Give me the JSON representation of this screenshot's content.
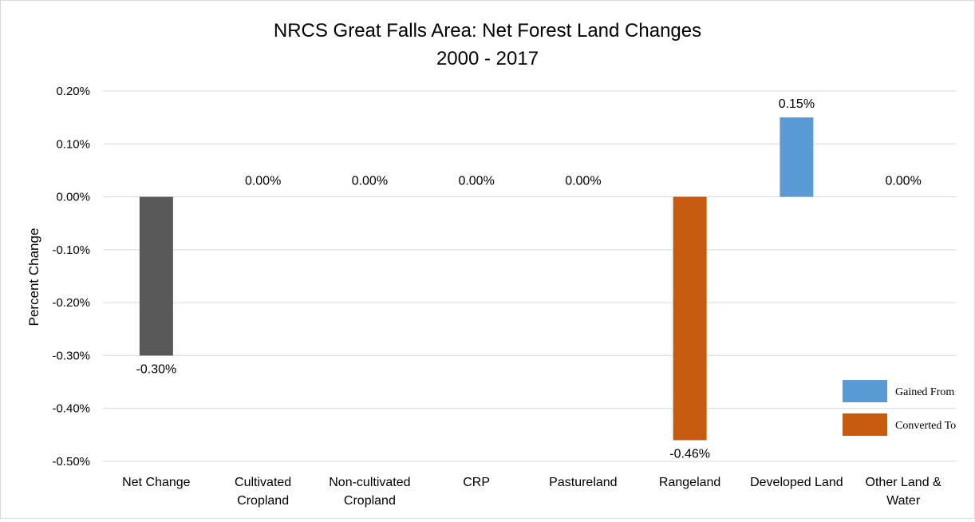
{
  "chart_data": {
    "type": "bar",
    "title": "NRCS Great Falls Area: Net Forest Land Changes",
    "subtitle": "2000 - 2017",
    "xlabel": "",
    "ylabel": "Percent Change",
    "ylim": [
      -0.5,
      0.2
    ],
    "yticks": [
      "0.20%",
      "0.10%",
      "0.00%",
      "-0.10%",
      "-0.20%",
      "-0.30%",
      "-0.40%",
      "-0.50%"
    ],
    "grid": true,
    "legend_position": "bottom-right",
    "categories": [
      [
        "Net Change"
      ],
      [
        "Cultivated",
        "Cropland"
      ],
      [
        "Non-cultivated",
        "Cropland"
      ],
      [
        "CRP"
      ],
      [
        "Pastureland"
      ],
      [
        "Rangeland"
      ],
      [
        "Developed Land"
      ],
      [
        "Other Land &",
        "Water"
      ]
    ],
    "values": [
      -0.3,
      0.0,
      0.0,
      0.0,
      0.0,
      -0.46,
      0.15,
      0.0
    ],
    "data_labels": [
      "-0.30%",
      "0.00%",
      "0.00%",
      "0.00%",
      "0.00%",
      "-0.46%",
      "0.15%",
      "0.00%"
    ],
    "bar_colors": [
      "#595959",
      "#5b9bd5",
      "#5b9bd5",
      "#5b9bd5",
      "#5b9bd5",
      "#c55a11",
      "#5b9bd5",
      "#5b9bd5"
    ],
    "legend": [
      {
        "label": "Gained From",
        "color": "#5b9bd5"
      },
      {
        "label": "Converted To",
        "color": "#c55a11"
      }
    ]
  }
}
